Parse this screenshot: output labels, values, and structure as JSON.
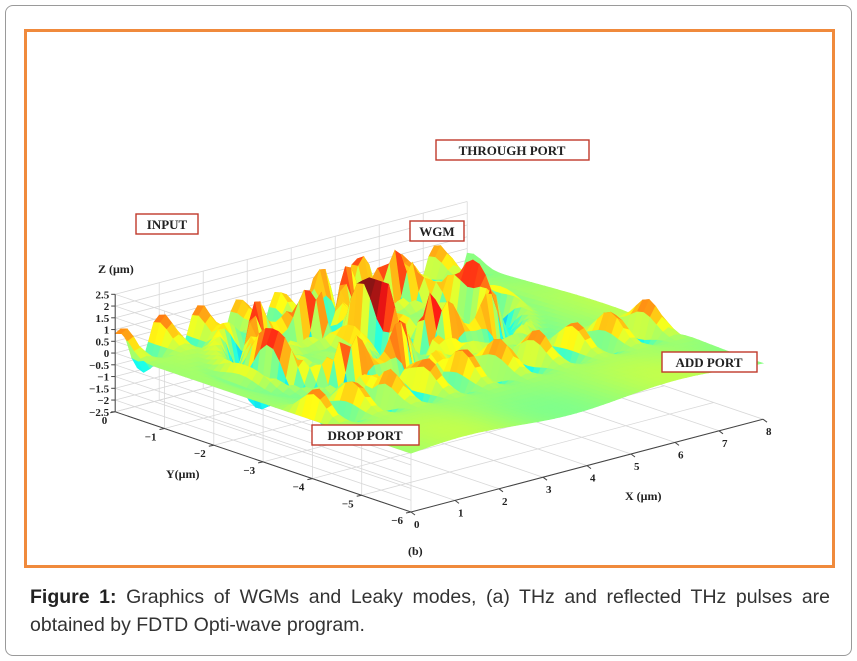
{
  "chart_data": {
    "type": "surface",
    "title": "",
    "panel_label": "(b)",
    "xlabel": "X (μm)",
    "ylabel": "Y(μm)",
    "zlabel": "Z (μm)",
    "xlim": [
      0,
      8
    ],
    "ylim": [
      -6,
      0
    ],
    "zlim": [
      -2.5,
      2.5
    ],
    "x_ticks": [
      "0",
      "1",
      "2",
      "3",
      "4",
      "5",
      "6",
      "7",
      "8"
    ],
    "y_ticks": [
      "0",
      "−1",
      "−2",
      "−3",
      "−4",
      "−5",
      "−6"
    ],
    "z_ticks": [
      "2.5",
      "2",
      "1.5",
      "1",
      "0.5",
      "0",
      "−0.5",
      "−1",
      "−1.5",
      "−2",
      "−2.5"
    ],
    "grid": true,
    "colormap": "jet",
    "annotations": [
      {
        "text": "THROUGH PORT",
        "color": "#c0392b"
      },
      {
        "text": "INPUT",
        "color": "#c0392b"
      },
      {
        "text": "WGM",
        "color": "#c0392b"
      },
      {
        "text": "ADD PORT",
        "color": "#c0392b"
      },
      {
        "text": "DROP PORT",
        "color": "#c0392b"
      }
    ]
  },
  "figure": {
    "label": "Figure 1:",
    "text": " Graphics of WGMs and Leaky modes, (a) THz and reflected THz pulses are obtained by FDTD Opti-wave program."
  },
  "colors": {
    "frame_border": "#f08a3c",
    "annotation_border": "#c0392b"
  }
}
